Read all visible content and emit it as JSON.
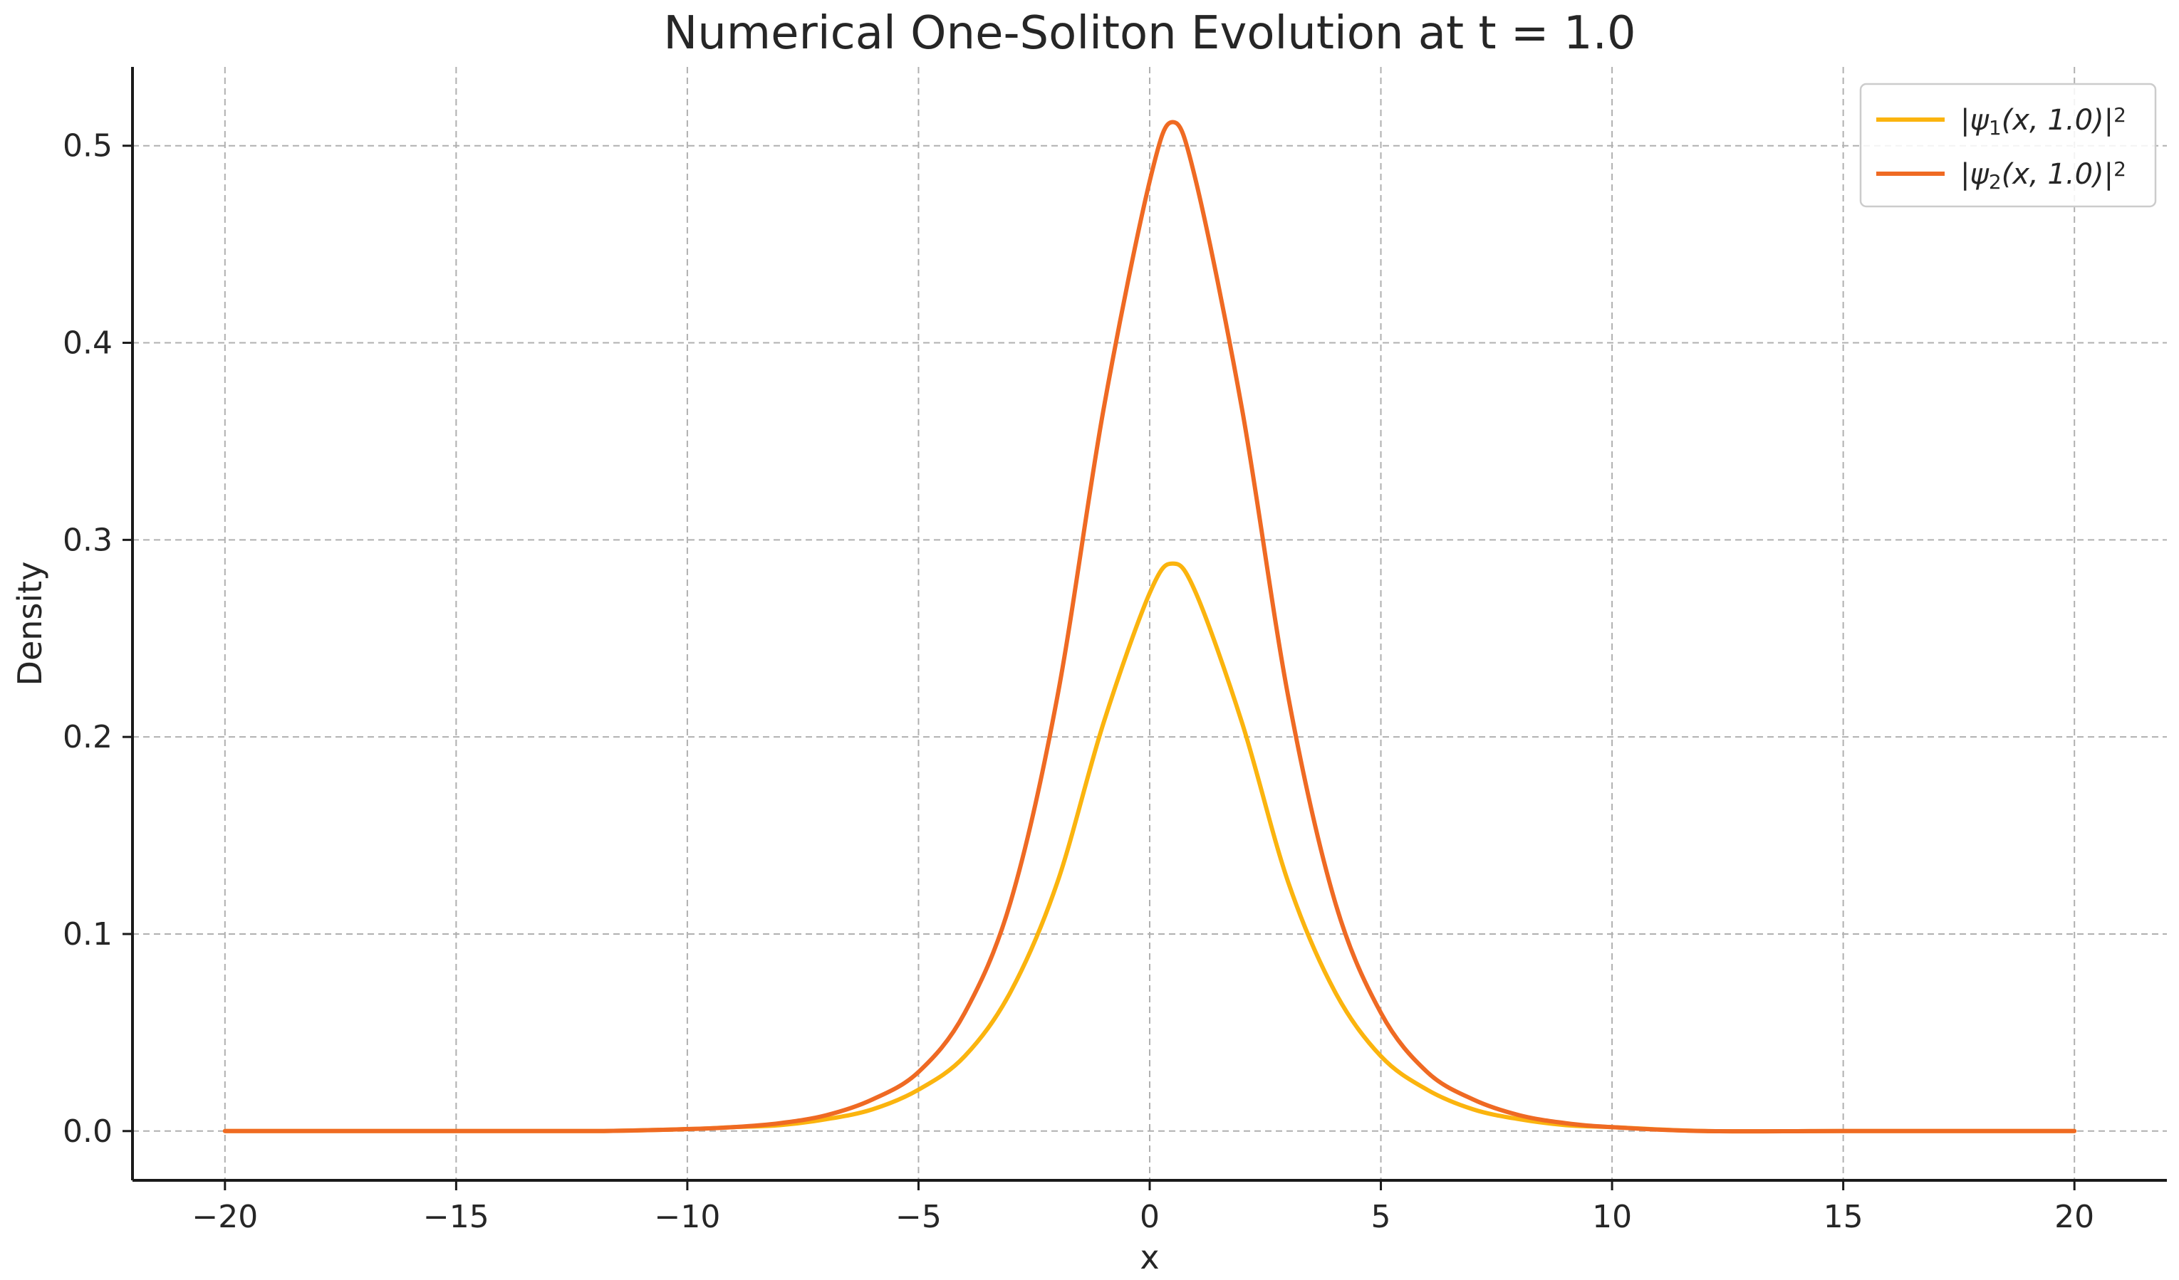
{
  "chart_data": {
    "type": "line",
    "title": "Numerical One-Soliton Evolution at t = 1.0",
    "xlabel": "x",
    "ylabel": "Density",
    "xlim": [
      -22,
      22
    ],
    "ylim": [
      -0.025,
      0.54
    ],
    "xticks": [
      -20,
      -15,
      -10,
      -5,
      0,
      5,
      10,
      15,
      20
    ],
    "xtick_labels": [
      "−20",
      "−15",
      "−10",
      "−5",
      "0",
      "5",
      "10",
      "15",
      "20"
    ],
    "yticks": [
      0.0,
      0.1,
      0.2,
      0.3,
      0.4,
      0.5
    ],
    "ytick_labels": [
      "0.0",
      "0.1",
      "0.2",
      "0.3",
      "0.4",
      "0.5"
    ],
    "grid": true,
    "legend_position": "top-right",
    "x": [
      -20,
      -15,
      -12,
      -10,
      -9,
      -8,
      -7,
      -6,
      -5,
      -4,
      -3,
      -2,
      -1,
      0,
      0.5,
      1,
      2,
      3,
      4,
      5,
      6,
      7,
      8,
      9,
      10,
      12,
      15,
      20
    ],
    "series": [
      {
        "name": "|ψ1(x, 1.0)|2",
        "legend": {
          "abs_open": "|",
          "psi": "ψ",
          "sub": "1",
          "args": "(x, 1.0)",
          "abs_close": "|",
          "sup": "2"
        },
        "color": "#fbb40e",
        "values": [
          0.0,
          0.0,
          0.0,
          0.001,
          0.002,
          0.003,
          0.006,
          0.011,
          0.021,
          0.038,
          0.071,
          0.126,
          0.207,
          0.273,
          0.288,
          0.273,
          0.207,
          0.126,
          0.071,
          0.038,
          0.021,
          0.011,
          0.006,
          0.003,
          0.002,
          0.0,
          0.0,
          0.0
        ]
      },
      {
        "name": "|ψ2(x, 1.0)|2",
        "legend": {
          "abs_open": "|",
          "psi": "ψ",
          "sub": "2",
          "args": "(x, 1.0)",
          "abs_close": "|",
          "sup": "2"
        },
        "color": "#ef6a23",
        "values": [
          0.0,
          0.0,
          0.0,
          0.001,
          0.002,
          0.004,
          0.008,
          0.016,
          0.03,
          0.06,
          0.117,
          0.22,
          0.366,
          0.482,
          0.512,
          0.482,
          0.366,
          0.22,
          0.117,
          0.06,
          0.03,
          0.016,
          0.008,
          0.004,
          0.002,
          0.0,
          0.0,
          0.0
        ]
      }
    ]
  }
}
